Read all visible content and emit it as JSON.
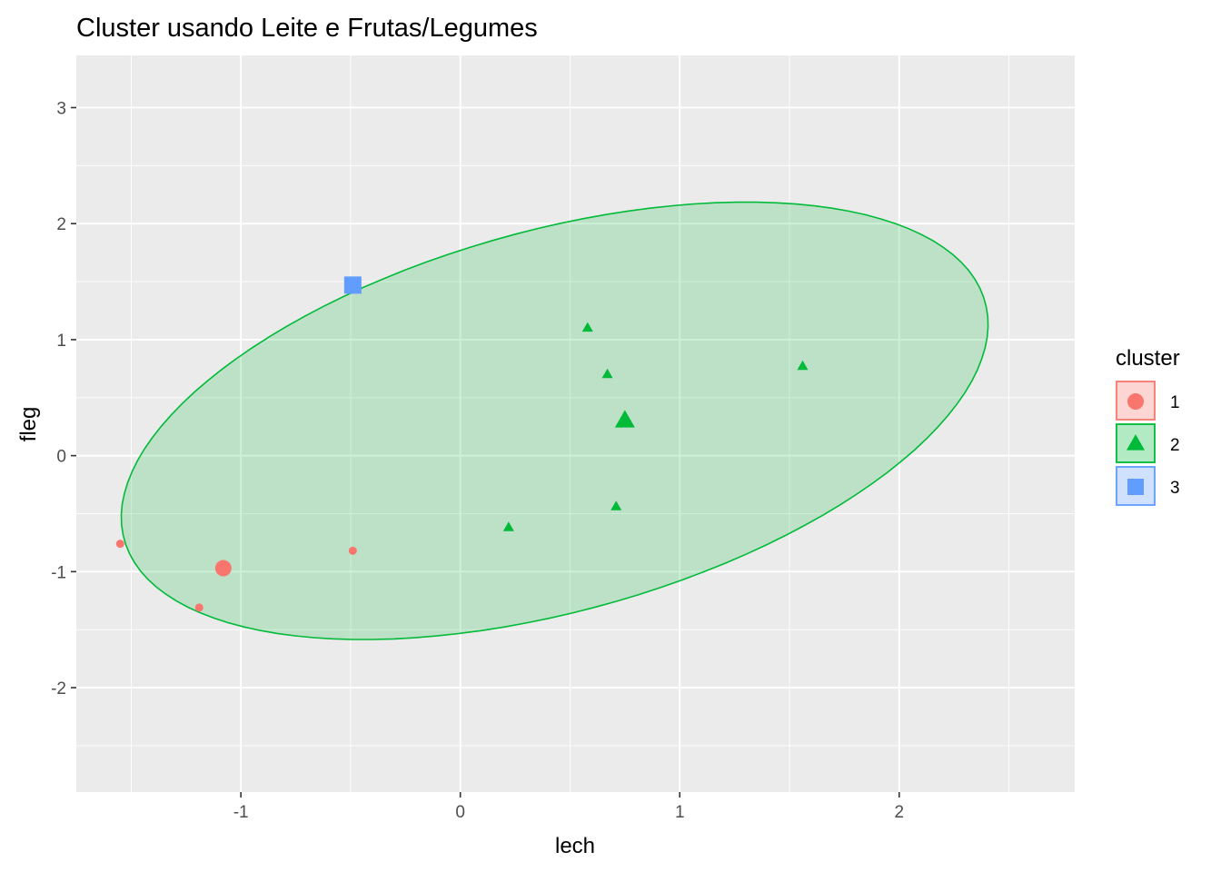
{
  "chart_data": {
    "type": "scatter",
    "title": "Cluster usando Leite e Frutas/Legumes",
    "xlabel": "lech",
    "ylabel": "fleg",
    "xlim": [
      -1.75,
      2.8
    ],
    "ylim": [
      -2.9,
      3.45
    ],
    "x_ticks": [
      -1,
      0,
      1,
      2
    ],
    "y_ticks": [
      -2,
      -1,
      0,
      1,
      2,
      3
    ],
    "x_tick_labels": [
      "-1",
      "0",
      "1",
      "2"
    ],
    "y_tick_labels": [
      "-2",
      "-1",
      "0",
      "1",
      "2",
      "3"
    ],
    "grid": true,
    "legend": {
      "title": "cluster",
      "placement": "right",
      "entries": [
        {
          "label": "1",
          "shape": "circle",
          "color": "#F8766D"
        },
        {
          "label": "2",
          "shape": "triangle",
          "color": "#00BA38"
        },
        {
          "label": "3",
          "shape": "square",
          "color": "#619CFF"
        }
      ]
    },
    "series": [
      {
        "name": "1",
        "shape": "circle",
        "color": "#F8766D",
        "points": [
          {
            "x": -1.55,
            "y": -0.76
          },
          {
            "x": -1.19,
            "y": -1.31
          },
          {
            "x": -0.49,
            "y": -0.82
          }
        ],
        "centroid": {
          "x": -1.08,
          "y": -0.97
        }
      },
      {
        "name": "2",
        "shape": "triangle",
        "color": "#00BA38",
        "points": [
          {
            "x": 0.58,
            "y": 1.1
          },
          {
            "x": 0.67,
            "y": 0.7
          },
          {
            "x": 1.56,
            "y": 0.77
          },
          {
            "x": 0.71,
            "y": -0.44
          },
          {
            "x": 0.22,
            "y": -0.62
          }
        ],
        "centroid": {
          "x": 0.75,
          "y": 0.3
        },
        "ellipse": {
          "center_x": 0.43,
          "center_y": 0.3,
          "semi_axis_a": 2.32,
          "semi_axis_b": 1.44,
          "angle_deg": 42
        }
      },
      {
        "name": "3",
        "shape": "square",
        "color": "#619CFF",
        "points": [],
        "centroid": {
          "x": -0.49,
          "y": 1.47
        }
      }
    ]
  }
}
